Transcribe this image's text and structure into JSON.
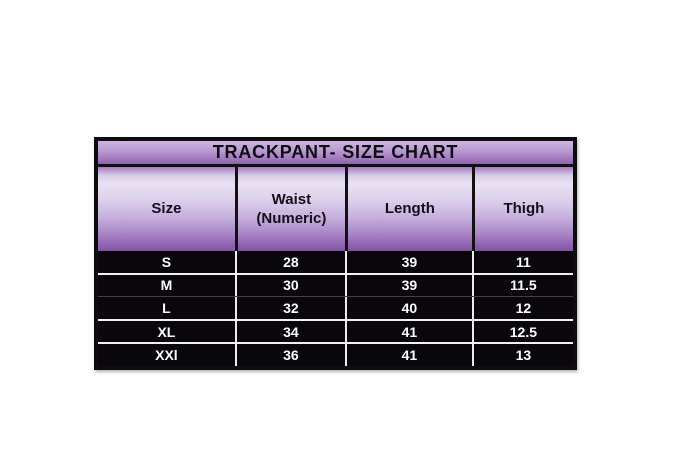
{
  "chart_data": {
    "type": "table",
    "title": "TRACKPANT- SIZE CHART",
    "columns": [
      "Size",
      "Waist (Numeric)",
      "Length",
      "Thigh"
    ],
    "rows": [
      [
        "S",
        "28",
        "39",
        "11"
      ],
      [
        "M",
        "30",
        "39",
        "11.5"
      ],
      [
        "L",
        "32",
        "40",
        "12"
      ],
      [
        "XL",
        "34",
        "41",
        "12.5"
      ],
      [
        "XXl",
        "36",
        "41",
        "13"
      ]
    ]
  },
  "colors": {
    "page_background": "#ffffff",
    "title_gradient_top": "#ccb5e0",
    "title_gradient_bottom": "#8d63ae",
    "header_gradient_light": "#e9e2f2",
    "header_gradient_dark": "#84539f",
    "data_row_background": "#0a070c",
    "data_text": "#ffffff",
    "header_text": "#14101a",
    "outer_border": "#0c0c0c",
    "row_separator": "#f2f0f4"
  }
}
